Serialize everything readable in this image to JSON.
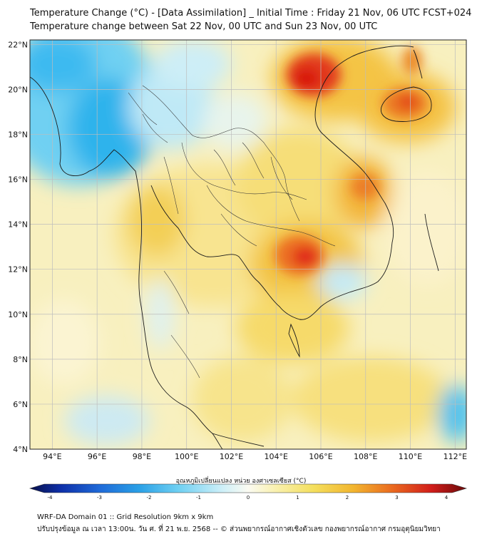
{
  "header": {
    "title_line1": "Temperature Change (°C) - [Data Assimilation] _ Initial Time : Friday 21 Nov, 06 UTC FCST+024",
    "title_line2": "Temperature change between Sat 22 Nov, 00 UTC and Sun 23 Nov, 00 UTC"
  },
  "map": {
    "lat_labels": [
      "22°N",
      "20°N",
      "18°N",
      "16°N",
      "14°N",
      "12°N",
      "10°N",
      "8°N",
      "6°N",
      "4°N"
    ],
    "lat_values": [
      22,
      20,
      18,
      16,
      14,
      12,
      10,
      8,
      6,
      4
    ],
    "lon_labels": [
      "94°E",
      "96°E",
      "98°E",
      "100°E",
      "102°E",
      "104°E",
      "106°E",
      "108°E",
      "110°E",
      "112°E"
    ],
    "lon_values": [
      94,
      96,
      98,
      100,
      102,
      104,
      106,
      108,
      110,
      112
    ],
    "lon_range": [
      93,
      112.5
    ],
    "lat_range": [
      4,
      22.2
    ],
    "grid": true
  },
  "colorbar": {
    "label": "อุณหภูมิเปลี่ยนแปลง หน่วย องศาเซลเซียส (°C)",
    "ticks": [
      "-4",
      "-3",
      "-2",
      "-1",
      "0",
      "1",
      "2",
      "3",
      "4"
    ],
    "range": [
      -4,
      4
    ]
  },
  "footer": {
    "line1": "WRF-DA Domain 01 :: Grid Resolution 9km x 9km",
    "line2": "ปรับปรุงข้อมูล ณ เวลา 13:00น. วัน ศ. ที่ 21 พ.ย. 2568 -- © ส่วนพยากรณ์อากาศเชิงตัวเลข กองพยากรณ์อากาศ กรมอุตุนิยมวิทยา"
  },
  "colors": {
    "cold": "#2ab3ea",
    "neutral": "#f7f3c8",
    "warm": "#f3c83a",
    "hot": "#e3261b"
  }
}
